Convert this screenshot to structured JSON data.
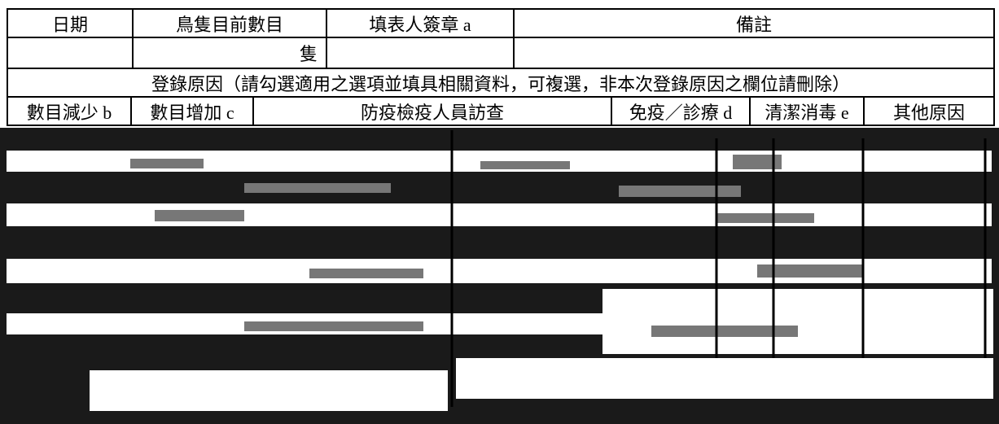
{
  "table": {
    "header_row": [
      "日期",
      "鳥隻目前數目",
      "填表人簽章 a",
      "備註"
    ],
    "count_unit": "隻",
    "reason_title": "登錄原因（請勾選適用之選項並填具相關資料，可複選，非本次登錄原因之欄位請刪除）",
    "reasons": [
      "數目減少 b",
      "數目增加 c",
      "防疫檢疫人員訪查",
      "免疫／診療 d",
      "清潔消毒 e",
      "其他原因"
    ]
  }
}
